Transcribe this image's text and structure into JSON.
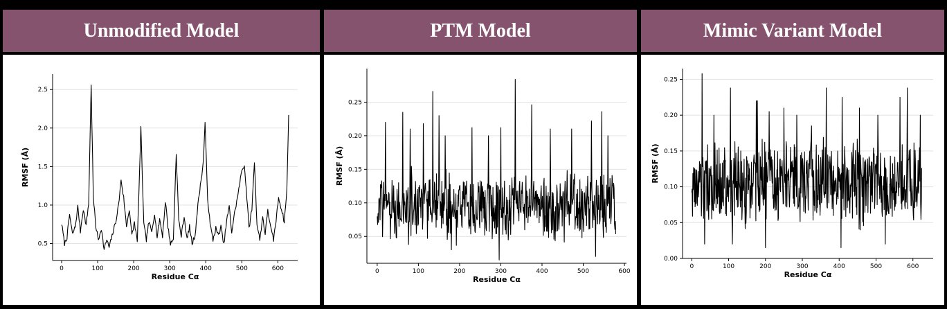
{
  "headers": {
    "unmodified": "Unmodified Model",
    "ptm": "PTM Model",
    "mimic": "Mimic Variant Model"
  },
  "colors": {
    "header_bg": "#86536f",
    "header_text": "#ffffff",
    "border": "#000000",
    "line": "#000000",
    "grid": "#e3e3e3"
  },
  "chart_data": [
    {
      "type": "line",
      "title": "",
      "xlabel": "Residue Cα",
      "ylabel": "RMSF (Å)",
      "xlim": [
        -25,
        655
      ],
      "ylim": [
        0.28,
        2.7
      ],
      "xticks": [
        0,
        100,
        200,
        300,
        400,
        500,
        600
      ],
      "yticks": [
        0.5,
        1.0,
        1.5,
        2.0,
        2.5
      ],
      "ytick_labels": [
        "0.5",
        "1.0",
        "1.5",
        "2.0",
        "2.5"
      ],
      "grid": true,
      "peaks": [
        [
          0,
          0.76
        ],
        [
          8,
          0.5
        ],
        [
          15,
          0.58
        ],
        [
          22,
          0.88
        ],
        [
          30,
          0.62
        ],
        [
          38,
          0.72
        ],
        [
          45,
          0.98
        ],
        [
          52,
          0.66
        ],
        [
          60,
          0.95
        ],
        [
          68,
          0.74
        ],
        [
          75,
          1.02
        ],
        [
          82,
          2.57
        ],
        [
          88,
          1.1
        ],
        [
          95,
          0.72
        ],
        [
          102,
          0.55
        ],
        [
          110,
          0.7
        ],
        [
          118,
          0.42
        ],
        [
          125,
          0.55
        ],
        [
          132,
          0.45
        ],
        [
          140,
          0.6
        ],
        [
          150,
          0.78
        ],
        [
          158,
          1.0
        ],
        [
          165,
          1.33
        ],
        [
          172,
          1.1
        ],
        [
          180,
          0.72
        ],
        [
          188,
          0.95
        ],
        [
          195,
          0.6
        ],
        [
          202,
          0.78
        ],
        [
          210,
          0.52
        ],
        [
          220,
          1.99
        ],
        [
          228,
          0.75
        ],
        [
          235,
          0.55
        ],
        [
          242,
          0.78
        ],
        [
          250,
          0.65
        ],
        [
          258,
          0.9
        ],
        [
          265,
          0.58
        ],
        [
          272,
          0.82
        ],
        [
          280,
          0.6
        ],
        [
          288,
          1.05
        ],
        [
          295,
          0.72
        ],
        [
          302,
          0.5
        ],
        [
          310,
          0.55
        ],
        [
          318,
          1.67
        ],
        [
          325,
          0.8
        ],
        [
          332,
          0.6
        ],
        [
          340,
          0.85
        ],
        [
          348,
          0.55
        ],
        [
          355,
          0.72
        ],
        [
          362,
          0.5
        ],
        [
          370,
          0.6
        ],
        [
          378,
          1.0
        ],
        [
          385,
          1.25
        ],
        [
          393,
          1.55
        ],
        [
          398,
          2.07
        ],
        [
          405,
          1.1
        ],
        [
          412,
          0.75
        ],
        [
          420,
          0.55
        ],
        [
          428,
          0.7
        ],
        [
          435,
          0.6
        ],
        [
          442,
          0.72
        ],
        [
          450,
          0.48
        ],
        [
          458,
          0.8
        ],
        [
          465,
          0.98
        ],
        [
          472,
          0.65
        ],
        [
          480,
          0.9
        ],
        [
          490,
          1.15
        ],
        [
          500,
          1.45
        ],
        [
          507,
          1.52
        ],
        [
          514,
          1.1
        ],
        [
          520,
          0.7
        ],
        [
          528,
          0.95
        ],
        [
          535,
          1.57
        ],
        [
          542,
          0.75
        ],
        [
          550,
          0.55
        ],
        [
          558,
          0.85
        ],
        [
          565,
          0.62
        ],
        [
          572,
          0.95
        ],
        [
          580,
          0.7
        ],
        [
          588,
          0.55
        ],
        [
          595,
          0.8
        ],
        [
          602,
          1.1
        ],
        [
          610,
          0.95
        ],
        [
          618,
          0.78
        ],
        [
          625,
          1.2
        ],
        [
          630,
          2.17
        ]
      ]
    },
    {
      "type": "line",
      "title": "",
      "xlabel": "Residue Cα",
      "ylabel": "RMSF (Å)",
      "xlim": [
        -25,
        605
      ],
      "ylim": [
        0.01,
        0.3
      ],
      "xticks": [
        0,
        100,
        200,
        300,
        400,
        500,
        600
      ],
      "yticks": [
        0.05,
        0.1,
        0.15,
        0.2,
        0.25
      ],
      "ytick_labels": [
        "0.05",
        "0.10",
        "0.15",
        "0.20",
        "0.25"
      ],
      "grid": true,
      "n_points": 580,
      "base": 0.095,
      "spread": 0.055,
      "peaks": [
        [
          20,
          0.22
        ],
        [
          62,
          0.235
        ],
        [
          80,
          0.21
        ],
        [
          112,
          0.218
        ],
        [
          135,
          0.266
        ],
        [
          150,
          0.23
        ],
        [
          165,
          0.2
        ],
        [
          230,
          0.212
        ],
        [
          270,
          0.2
        ],
        [
          300,
          0.212
        ],
        [
          335,
          0.284
        ],
        [
          375,
          0.246
        ],
        [
          420,
          0.21
        ],
        [
          472,
          0.21
        ],
        [
          520,
          0.222
        ],
        [
          545,
          0.236
        ],
        [
          560,
          0.2
        ]
      ],
      "dips": [
        [
          135,
          0.02
        ],
        [
          180,
          0.03
        ],
        [
          296,
          0.015
        ],
        [
          530,
          0.02
        ]
      ]
    },
    {
      "type": "line",
      "title": "",
      "xlabel": "Residue Cα",
      "ylabel": "RMSF (Å)",
      "xlim": [
        -25,
        655
      ],
      "ylim": [
        0.0,
        0.265
      ],
      "xticks": [
        0,
        100,
        200,
        300,
        400,
        500,
        600
      ],
      "yticks": [
        0.0,
        0.05,
        0.1,
        0.15,
        0.2,
        0.25
      ],
      "ytick_labels": [
        "0.00",
        "0.05",
        "0.10",
        "0.15",
        "0.20",
        "0.25"
      ],
      "grid": true,
      "n_points": 625,
      "base": 0.105,
      "spread": 0.06,
      "peaks": [
        [
          28,
          0.258
        ],
        [
          60,
          0.2
        ],
        [
          105,
          0.238
        ],
        [
          175,
          0.22
        ],
        [
          178,
          0.22
        ],
        [
          210,
          0.205
        ],
        [
          250,
          0.21
        ],
        [
          285,
          0.2
        ],
        [
          325,
          0.185
        ],
        [
          365,
          0.238
        ],
        [
          408,
          0.225
        ],
        [
          455,
          0.21
        ],
        [
          505,
          0.2
        ],
        [
          565,
          0.225
        ],
        [
          585,
          0.238
        ],
        [
          620,
          0.2
        ]
      ],
      "dips": [
        [
          35,
          0.02
        ],
        [
          110,
          0.02
        ],
        [
          200,
          0.015
        ],
        [
          405,
          0.015
        ],
        [
          525,
          0.02
        ]
      ]
    }
  ]
}
